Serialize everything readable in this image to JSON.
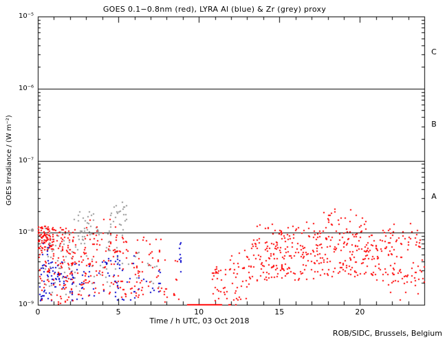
{
  "credit": "ROB/SIDC, Brussels, Belgium",
  "chart_data": {
    "type": "scatter",
    "title": "GOES 0.1−0.8nm (red), LYRA Al (blue) & Zr (grey) proxy",
    "xlabel": "Time / h UTC, 03 Oct 2018",
    "ylabel": "GOES Irradiance / (W m⁻²)",
    "x_range": [
      0,
      24
    ],
    "x_major_ticks": [
      {
        "t": 0,
        "label": "0"
      },
      {
        "t": 5,
        "label": "5"
      },
      {
        "t": 10,
        "label": "10"
      },
      {
        "t": 15,
        "label": "15"
      },
      {
        "t": 20,
        "label": "20"
      }
    ],
    "x_minor_step_h": 1,
    "y_scale": "log",
    "y_log_range": [
      -9,
      -5
    ],
    "y_ticks": [
      {
        "log": -5,
        "label": "10⁻⁵"
      },
      {
        "log": -6,
        "label": "10⁻⁶"
      },
      {
        "log": -7,
        "label": "10⁻⁷"
      },
      {
        "log": -8,
        "label": "10⁻⁸"
      },
      {
        "log": -9,
        "label": "10⁻⁹"
      }
    ],
    "grid": "off",
    "hlines_log": [
      -6,
      -7,
      -8
    ],
    "flare_class_labels": [
      {
        "label": "C",
        "log_center": -5.5
      },
      {
        "label": "B",
        "log_center": -6.5
      },
      {
        "label": "A",
        "log_center": -7.5
      }
    ],
    "marker_px": 2,
    "seed": 42,
    "series": [
      {
        "name": "LYRA Zr proxy",
        "color": "#949494",
        "segments": [
          {
            "t0": 0.2,
            "t1": 2.2,
            "n": 42,
            "log0": [
              -8.5,
              -7.93
            ]
          },
          {
            "t0": 0.3,
            "t1": 2.0,
            "n": 14,
            "log0": [
              -8.9,
              -8.5
            ]
          },
          {
            "t0": 2.2,
            "t1": 3.9,
            "n": 34,
            "log0": [
              -8.1,
              -7.7
            ]
          },
          {
            "t0": 4.3,
            "t1": 5.5,
            "n": 28,
            "log0": [
              -8.05,
              -7.56
            ]
          },
          {
            "t0": 2.0,
            "t1": 6.3,
            "n": 38,
            "log0": [
              -8.8,
              -8.1
            ]
          },
          {
            "t0": 6.3,
            "t1": 8.0,
            "n": 8,
            "log0": [
              -8.8,
              -8.4
            ]
          }
        ]
      },
      {
        "name": "LYRA Al proxy",
        "color": "#0000cc",
        "segments": [
          {
            "t0": 0.05,
            "t1": 1.2,
            "n": 45,
            "log0": [
              -8.95,
              -8.35
            ]
          },
          {
            "t0": 0.1,
            "t1": 0.7,
            "n": 6,
            "log0": [
              -8.3,
              -8.08
            ]
          },
          {
            "t0": 1.2,
            "t1": 3.0,
            "n": 40,
            "log0": [
              -8.95,
              -8.4
            ]
          },
          {
            "t0": 3.0,
            "t1": 6.0,
            "n": 46,
            "log0": [
              -8.92,
              -8.3
            ]
          },
          {
            "t0": 6.0,
            "t1": 7.6,
            "n": 12,
            "log0": [
              -8.9,
              -8.5
            ]
          },
          {
            "t0": 8.72,
            "t1": 8.85,
            "n": 9,
            "log0": [
              -8.55,
              -7.88
            ]
          }
        ]
      },
      {
        "name": "GOES 0.1-0.8nm",
        "color": "#ff0000",
        "segments": [
          {
            "t0": 0.0,
            "t1": 1.0,
            "n": 85,
            "log0": [
              -8.25,
              -7.9
            ]
          },
          {
            "t0": 0.0,
            "t1": 1.0,
            "n": 30,
            "log0": [
              -8.95,
              -8.25
            ]
          },
          {
            "t0": 1.0,
            "t1": 2.3,
            "n": 65,
            "log0": [
              -8.6,
              -7.92
            ]
          },
          {
            "t0": 1.0,
            "t1": 2.3,
            "n": 28,
            "log0": [
              -8.98,
              -8.55
            ]
          },
          {
            "t0": 2.3,
            "t1": 5.0,
            "n": 95,
            "log0": [
              -8.88,
              -8.0
            ]
          },
          {
            "t0": 1.5,
            "t1": 5.0,
            "n": 8,
            "log0": [
              -7.98,
              -7.78
            ]
          },
          {
            "t0": 5.0,
            "t1": 7.6,
            "n": 75,
            "log0": [
              -8.92,
              -8.05
            ]
          },
          {
            "t0": 7.6,
            "t1": 8.7,
            "n": 16,
            "log0": [
              -8.97,
              -8.35
            ]
          },
          {
            "t0": 10.8,
            "t1": 13.0,
            "n": 55,
            "log0": [
              -9.0,
              -8.5
            ],
            "log1": [
              -8.75,
              -8.15
            ]
          },
          {
            "t0": 11.6,
            "t1": 13.0,
            "n": 10,
            "log0": [
              -9.0,
              -8.88
            ]
          },
          {
            "t0": 13.0,
            "t1": 14.8,
            "n": 75,
            "log0": [
              -8.72,
              -8.1
            ],
            "log1": [
              -8.62,
              -7.95
            ]
          },
          {
            "t0": 13.5,
            "t1": 14.9,
            "n": 6,
            "log0": [
              -7.95,
              -7.86
            ]
          },
          {
            "t0": 14.8,
            "t1": 17.2,
            "n": 105,
            "log0": [
              -8.66,
              -7.95
            ]
          },
          {
            "t0": 15.5,
            "t1": 17.2,
            "n": 7,
            "log0": [
              -7.95,
              -7.84
            ]
          },
          {
            "t0": 17.2,
            "t1": 20.8,
            "n": 150,
            "log0": [
              -8.6,
              -7.96
            ]
          },
          {
            "t0": 17.4,
            "t1": 20.7,
            "n": 26,
            "log0": [
              -7.96,
              -7.66
            ]
          },
          {
            "t0": 20.8,
            "t1": 24.0,
            "n": 115,
            "log0": [
              -8.72,
              -7.97
            ]
          },
          {
            "t0": 21.3,
            "t1": 23.6,
            "n": 6,
            "log0": [
              -7.97,
              -7.86
            ]
          },
          {
            "t0": 20.8,
            "t1": 23.9,
            "n": 4,
            "log0": [
              -8.95,
              -8.75
            ]
          }
        ]
      }
    ],
    "floor_segment": {
      "series": "GOES 0.1-0.8nm",
      "t0": 9.27,
      "t1": 11.45,
      "log": -9,
      "color": "#ff0000"
    }
  }
}
